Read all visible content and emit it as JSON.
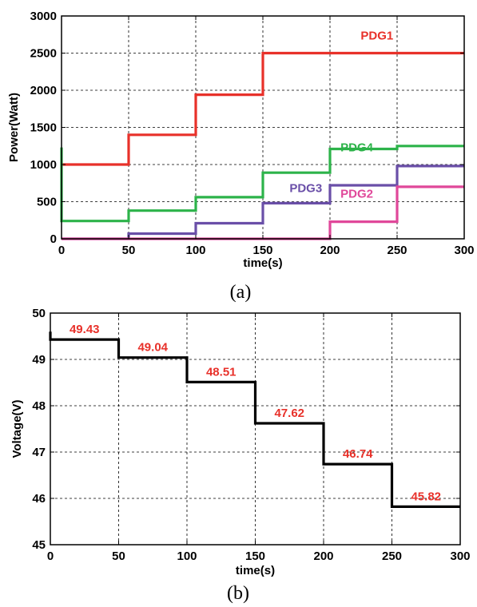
{
  "chart_data": [
    {
      "type": "line",
      "caption": "(a)",
      "xlabel": "time(s)",
      "ylabel": "Power(Watt)",
      "xlim": [
        0,
        300
      ],
      "ylim": [
        0,
        3000
      ],
      "xticks": [
        0,
        50,
        100,
        150,
        200,
        250,
        300
      ],
      "yticks": [
        0,
        500,
        1000,
        1500,
        2000,
        2500,
        3000
      ],
      "grid": true,
      "series": [
        {
          "name": "PDG1",
          "color": "#e8312a",
          "x": [
            0,
            50,
            50,
            100,
            100,
            150,
            150,
            200,
            200,
            250,
            250,
            300
          ],
          "y": [
            1000,
            1000,
            1400,
            1400,
            1940,
            1940,
            2500,
            2500,
            2500,
            2500,
            2500,
            2500
          ]
        },
        {
          "name": "PDG4",
          "color": "#2db34a",
          "x": [
            0,
            0,
            50,
            50,
            100,
            100,
            150,
            150,
            200,
            200,
            250,
            250,
            300
          ],
          "y": [
            1230,
            240,
            240,
            380,
            380,
            560,
            560,
            890,
            890,
            1210,
            1210,
            1250,
            1250
          ]
        },
        {
          "name": "PDG3",
          "color": "#6a4fa8",
          "x": [
            0,
            50,
            50,
            100,
            100,
            150,
            150,
            200,
            200,
            250,
            250,
            300
          ],
          "y": [
            0,
            0,
            70,
            70,
            210,
            210,
            480,
            480,
            720,
            720,
            980,
            980
          ]
        },
        {
          "name": "PDG2",
          "color": "#e0489a",
          "x": [
            0,
            200,
            200,
            250,
            250,
            300
          ],
          "y": [
            0,
            0,
            230,
            230,
            700,
            700
          ]
        }
      ]
    },
    {
      "type": "line",
      "caption": "(b)",
      "xlabel": "time(s)",
      "ylabel": "Voltage(V)",
      "xlim": [
        0,
        300
      ],
      "ylim": [
        45,
        50
      ],
      "xticks": [
        0,
        50,
        100,
        150,
        200,
        250,
        300
      ],
      "yticks": [
        45,
        46,
        47,
        48,
        49,
        50
      ],
      "grid": true,
      "label_color": "#e8312a",
      "series": [
        {
          "color": "#000000",
          "x": [
            0,
            0,
            50,
            50,
            100,
            100,
            150,
            150,
            200,
            200,
            250,
            250,
            300
          ],
          "y": [
            49.6,
            49.43,
            49.43,
            49.04,
            49.04,
            48.51,
            48.51,
            47.62,
            47.62,
            46.74,
            46.74,
            45.82,
            45.82
          ]
        }
      ],
      "annotations": [
        {
          "text": "49.43",
          "x": 25,
          "y": 49.43
        },
        {
          "text": "49.04",
          "x": 75,
          "y": 49.04
        },
        {
          "text": "48.51",
          "x": 125,
          "y": 48.51
        },
        {
          "text": "47.62",
          "x": 175,
          "y": 47.62
        },
        {
          "text": "46.74",
          "x": 225,
          "y": 46.74
        },
        {
          "text": "45.82",
          "x": 275,
          "y": 45.82
        }
      ]
    }
  ]
}
